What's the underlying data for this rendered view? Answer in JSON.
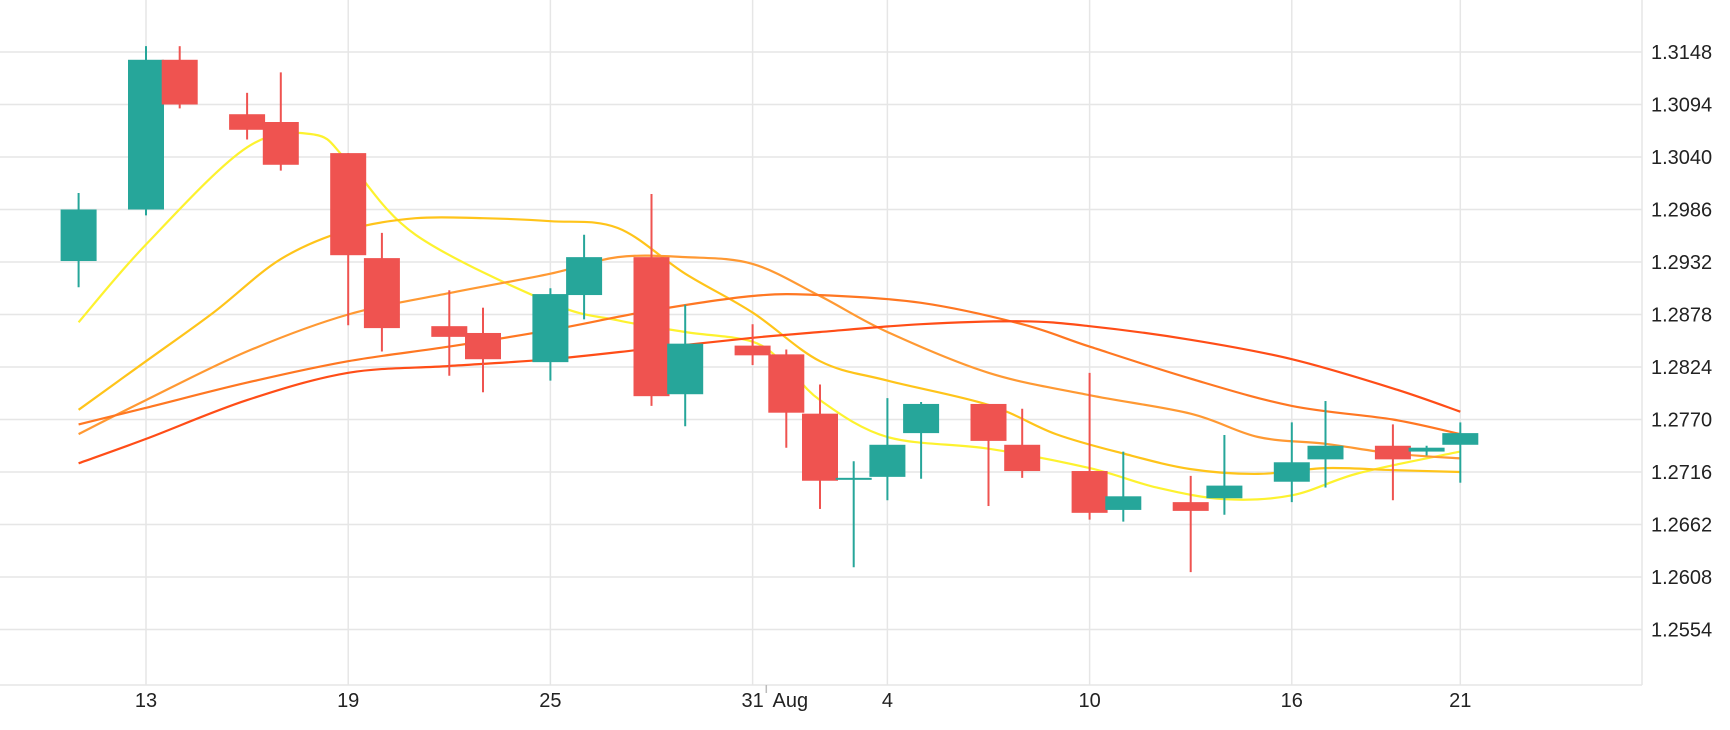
{
  "chart_data": {
    "type": "candlestick",
    "title": "",
    "xlabel": "",
    "ylabel": "",
    "ylim": [
      1.25,
      1.32
    ],
    "grid": true,
    "y_ticks": [
      "1.3148",
      "1.3094",
      "1.3040",
      "1.2986",
      "1.2932",
      "1.2878",
      "1.2824",
      "1.2770",
      "1.2716",
      "1.2662",
      "1.2608",
      "1.2554"
    ],
    "x_ticks": [
      {
        "label": "13",
        "at": "Jul 13"
      },
      {
        "label": "19",
        "at": "Jul 19"
      },
      {
        "label": "25",
        "at": "Jul 25"
      },
      {
        "label": "31",
        "at": "Jul 31"
      },
      {
        "label": "Aug",
        "at": "Aug 1"
      },
      {
        "label": "4",
        "at": "Aug 4"
      },
      {
        "label": "10",
        "at": "Aug 10"
      },
      {
        "label": "16",
        "at": "Aug 16"
      },
      {
        "label": "21",
        "at": "Aug 21"
      }
    ],
    "candles": [
      {
        "date": "Jul 11",
        "open": 1.2933,
        "high": 1.3003,
        "low": 1.2906,
        "close": 1.2986
      },
      {
        "date": "Jul 13",
        "open": 1.2986,
        "high": 1.3154,
        "low": 1.298,
        "close": 1.314
      },
      {
        "date": "Jul 14",
        "open": 1.314,
        "high": 1.3154,
        "low": 1.309,
        "close": 1.3094
      },
      {
        "date": "Jul 16",
        "open": 1.3084,
        "high": 1.3106,
        "low": 1.3058,
        "close": 1.3068
      },
      {
        "date": "Jul 17",
        "open": 1.3076,
        "high": 1.3127,
        "low": 1.3026,
        "close": 1.3032
      },
      {
        "date": "Jul 19",
        "open": 1.3044,
        "high": 1.3044,
        "low": 1.2867,
        "close": 1.2939
      },
      {
        "date": "Jul 20",
        "open": 1.2936,
        "high": 1.2962,
        "low": 1.284,
        "close": 1.2864
      },
      {
        "date": "Jul 22",
        "open": 1.2866,
        "high": 1.2903,
        "low": 1.2815,
        "close": 1.2855
      },
      {
        "date": "Jul 23",
        "open": 1.2859,
        "high": 1.2885,
        "low": 1.2798,
        "close": 1.2832
      },
      {
        "date": "Jul 25",
        "open": 1.2829,
        "high": 1.2905,
        "low": 1.281,
        "close": 1.2899
      },
      {
        "date": "Jul 26",
        "open": 1.2898,
        "high": 1.296,
        "low": 1.2873,
        "close": 1.2937
      },
      {
        "date": "Jul 28",
        "open": 1.2937,
        "high": 1.3002,
        "low": 1.2784,
        "close": 1.2794
      },
      {
        "date": "Jul 29",
        "open": 1.2796,
        "high": 1.2888,
        "low": 1.2763,
        "close": 1.2848
      },
      {
        "date": "Jul 31",
        "open": 1.2846,
        "high": 1.2868,
        "low": 1.2826,
        "close": 1.2836
      },
      {
        "date": "Aug 1",
        "open": 1.2837,
        "high": 1.2842,
        "low": 1.2741,
        "close": 1.2777
      },
      {
        "date": "Aug 2",
        "open": 1.2776,
        "high": 1.2806,
        "low": 1.2678,
        "close": 1.2707
      },
      {
        "date": "Aug 3",
        "open": 1.271,
        "high": 1.2727,
        "low": 1.2618,
        "close": 1.271
      },
      {
        "date": "Aug 4",
        "open": 1.2711,
        "high": 1.2792,
        "low": 1.2687,
        "close": 1.2744
      },
      {
        "date": "Aug 5",
        "open": 1.2756,
        "high": 1.2788,
        "low": 1.2709,
        "close": 1.2786
      },
      {
        "date": "Aug 7",
        "open": 1.2786,
        "high": 1.2786,
        "low": 1.2681,
        "close": 1.2748
      },
      {
        "date": "Aug 8",
        "open": 1.2744,
        "high": 1.2781,
        "low": 1.271,
        "close": 1.2717
      },
      {
        "date": "Aug 10",
        "open": 1.2717,
        "high": 1.2818,
        "low": 1.2667,
        "close": 1.2674
      },
      {
        "date": "Aug 11",
        "open": 1.2677,
        "high": 1.2737,
        "low": 1.2665,
        "close": 1.2691
      },
      {
        "date": "Aug 13",
        "open": 1.2685,
        "high": 1.2712,
        "low": 1.2613,
        "close": 1.2676
      },
      {
        "date": "Aug 14",
        "open": 1.2689,
        "high": 1.2754,
        "low": 1.2672,
        "close": 1.2702
      },
      {
        "date": "Aug 16",
        "open": 1.2706,
        "high": 1.2767,
        "low": 1.2685,
        "close": 1.2726
      },
      {
        "date": "Aug 17",
        "open": 1.2729,
        "high": 1.2789,
        "low": 1.27,
        "close": 1.2743
      },
      {
        "date": "Aug 19",
        "open": 1.2743,
        "high": 1.2765,
        "low": 1.2687,
        "close": 1.2729
      },
      {
        "date": "Aug 20",
        "open": 1.2737,
        "high": 1.2743,
        "low": 1.2733,
        "close": 1.2741
      },
      {
        "date": "Aug 21",
        "open": 1.2744,
        "high": 1.2767,
        "low": 1.2705,
        "close": 1.2756
      }
    ],
    "series": [
      {
        "color": "#fdf22f",
        "x": [
          "Jul 11",
          "Jul 13",
          "Jul 16",
          "Jul 18",
          "Jul 19",
          "Jul 21",
          "Jul 25",
          "Jul 27",
          "Jul 29",
          "Jul 31",
          "Aug 1",
          "Aug 2",
          "Aug 4",
          "Aug 7",
          "Aug 10",
          "Aug 12",
          "Aug 14",
          "Aug 16",
          "Aug 18",
          "Aug 21"
        ],
        "values": [
          1.287,
          1.295,
          1.305,
          1.3063,
          1.3035,
          1.296,
          1.289,
          1.2872,
          1.286,
          1.285,
          1.2825,
          1.279,
          1.2752,
          1.274,
          1.272,
          1.27,
          1.2688,
          1.2692,
          1.2715,
          1.2737
        ]
      },
      {
        "color": "#ffc41a",
        "x": [
          "Jul 11",
          "Jul 13",
          "Jul 15",
          "Jul 17",
          "Jul 19",
          "Jul 21",
          "Jul 23",
          "Jul 25",
          "Jul 27",
          "Jul 29",
          "Jul 31",
          "Aug 2",
          "Aug 4",
          "Aug 7",
          "Aug 9",
          "Aug 11",
          "Aug 13",
          "Aug 15",
          "Aug 17",
          "Aug 19",
          "Aug 21"
        ],
        "values": [
          1.278,
          1.283,
          1.288,
          1.2935,
          1.2965,
          1.2977,
          1.2977,
          1.2974,
          1.2967,
          1.292,
          1.288,
          1.283,
          1.281,
          1.2785,
          1.2755,
          1.2735,
          1.2719,
          1.2714,
          1.272,
          1.2718,
          1.2716
        ]
      },
      {
        "color": "#ff9933",
        "x": [
          "Jul 11",
          "Jul 13",
          "Jul 16",
          "Jul 19",
          "Jul 22",
          "Jul 25",
          "Jul 27",
          "Jul 29",
          "Jul 31",
          "Aug 2",
          "Aug 4",
          "Aug 7",
          "Aug 10",
          "Aug 13",
          "Aug 15",
          "Aug 17",
          "Aug 19",
          "Aug 21"
        ],
        "values": [
          1.2755,
          1.279,
          1.284,
          1.2878,
          1.29,
          1.292,
          1.2937,
          1.2937,
          1.293,
          1.2897,
          1.286,
          1.2818,
          1.2795,
          1.2776,
          1.2752,
          1.2745,
          1.2735,
          1.273
        ]
      },
      {
        "color": "#ff7722",
        "x": [
          "Jul 11",
          "Jul 13",
          "Jul 16",
          "Jul 19",
          "Jul 22",
          "Jul 25",
          "Jul 28",
          "Jul 31",
          "Aug 2",
          "Aug 5",
          "Aug 8",
          "Aug 10",
          "Aug 13",
          "Aug 16",
          "Aug 19",
          "Aug 21"
        ],
        "values": [
          1.2765,
          1.2782,
          1.2808,
          1.283,
          1.2845,
          1.2862,
          1.2882,
          1.2897,
          1.2898,
          1.289,
          1.2868,
          1.2845,
          1.2812,
          1.2784,
          1.277,
          1.2755
        ]
      },
      {
        "color": "#ff4d17",
        "x": [
          "Jul 11",
          "Jul 13",
          "Jul 16",
          "Jul 19",
          "Jul 22",
          "Jul 25",
          "Jul 28",
          "Jul 31",
          "Aug 2",
          "Aug 5",
          "Aug 8",
          "Aug 10",
          "Aug 13",
          "Aug 16",
          "Aug 19",
          "Aug 21"
        ],
        "values": [
          1.2725,
          1.275,
          1.279,
          1.2818,
          1.2825,
          1.2832,
          1.2843,
          1.2854,
          1.286,
          1.2868,
          1.2871,
          1.2866,
          1.2852,
          1.2832,
          1.2802,
          1.2778
        ]
      }
    ],
    "colors": {
      "up": "#26a69a",
      "down": "#ef5350",
      "grid": "#e6e6e6",
      "text": "#222222"
    }
  }
}
